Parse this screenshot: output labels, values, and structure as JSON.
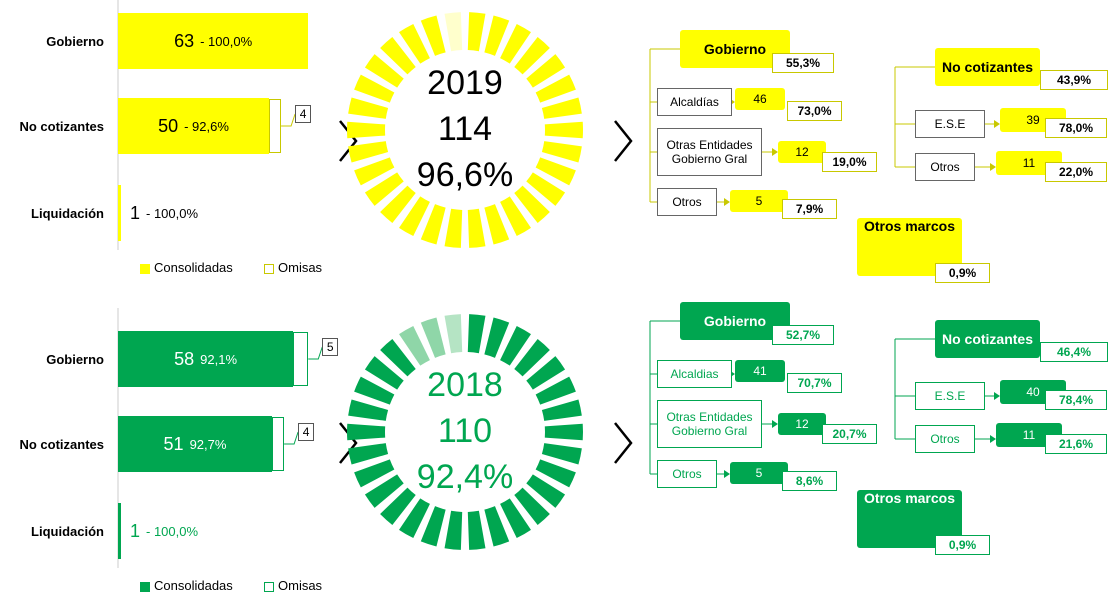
{
  "panels": [
    {
      "year": "2019",
      "total": "114",
      "share": "96,6%",
      "bars": [
        {
          "label": "Gobierno",
          "count": 63,
          "pct": "- 100,0%",
          "omisas": null
        },
        {
          "label": "No cotizantes",
          "count": 50,
          "pct": "- 92,6%",
          "omisas": 4
        },
        {
          "label": "Liquidación",
          "count": 1,
          "pct": "- 100,0%",
          "omisas": null
        }
      ],
      "legend": [
        "Consolidadas",
        "Omisas"
      ],
      "tree": [
        {
          "label": "Gobierno",
          "pct": "55,3%",
          "children": [
            {
              "label": "Alcaldías",
              "count": "46",
              "pct": "73,0%"
            },
            {
              "label": "Otras Entidades\nGobierno Gral",
              "count": "12",
              "pct": "19,0%"
            },
            {
              "label": "Otros",
              "count": "5",
              "pct": "7,9%"
            }
          ]
        },
        {
          "label": "No cotizantes",
          "pct": "43,9%",
          "children": [
            {
              "label": "E.S.E",
              "count": "39",
              "pct": "78,0%"
            },
            {
              "label": "Otros",
              "count": "11",
              "pct": "22,0%"
            }
          ]
        },
        {
          "label": "Otros marcos",
          "pct": "0,9%",
          "children": []
        }
      ]
    },
    {
      "year": "2018",
      "total": "110",
      "share": "92,4%",
      "bars": [
        {
          "label": "Gobierno",
          "count": 58,
          "pct": "92,1%",
          "omisas": 5
        },
        {
          "label": "No cotizantes",
          "count": 51,
          "pct": "92,7%",
          "omisas": 4
        },
        {
          "label": "Liquidación",
          "count": 1,
          "pct": "- 100,0%",
          "omisas": null
        }
      ],
      "legend": [
        "Consolidadas",
        "Omisas"
      ],
      "tree": [
        {
          "label": "Gobierno",
          "pct": "52,7%",
          "children": [
            {
              "label": "Alcaldias",
              "count": "41",
              "pct": "70,7%"
            },
            {
              "label": "Otras Entidades\nGobierno Gral",
              "count": "12",
              "pct": "20,7%"
            },
            {
              "label": "Otros",
              "count": "5",
              "pct": "8,6%"
            }
          ]
        },
        {
          "label": "No cotizantes",
          "pct": "46,4%",
          "children": [
            {
              "label": "E.S.E",
              "count": "40",
              "pct": "78,4%"
            },
            {
              "label": "Otros",
              "count": "11",
              "pct": "21,6%"
            }
          ]
        },
        {
          "label": "Otros marcos",
          "pct": "0,9%",
          "children": []
        }
      ]
    }
  ]
}
